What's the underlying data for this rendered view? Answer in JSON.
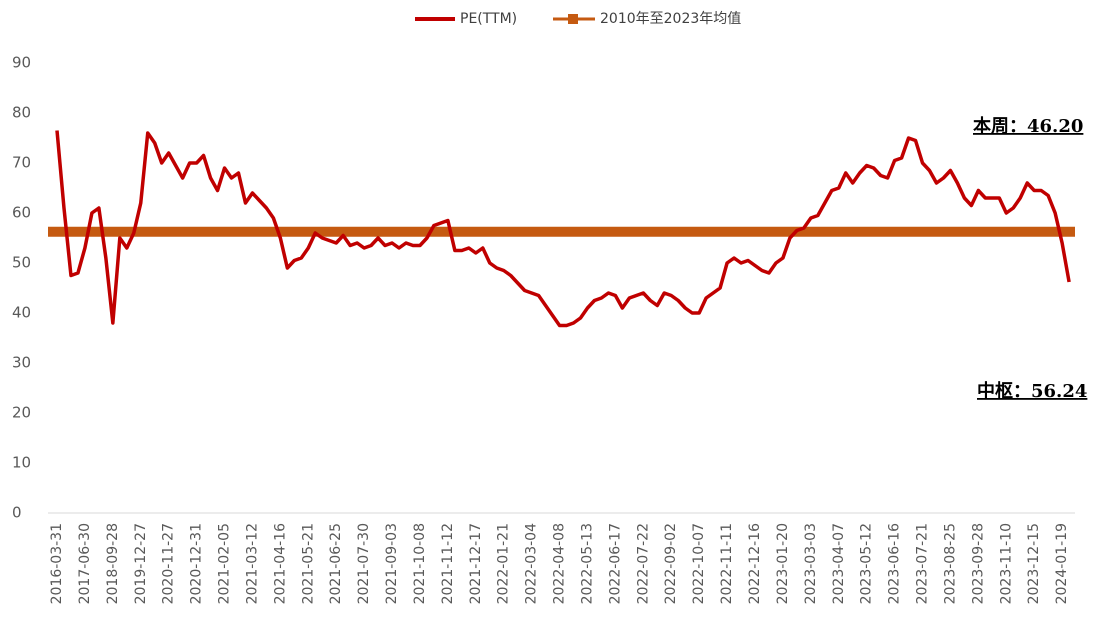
{
  "chart_data": {
    "type": "line",
    "categories": [
      "2016-03-31",
      null,
      null,
      null,
      "2017-06-30",
      null,
      null,
      null,
      "2018-09-28",
      null,
      null,
      null,
      "2019-12-27",
      null,
      null,
      null,
      "2020-11-27",
      null,
      null,
      null,
      "2020-12-31",
      null,
      null,
      null,
      "2021-02-05",
      null,
      null,
      null,
      "2021-03-12",
      null,
      null,
      null,
      "2021-04-16",
      null,
      null,
      null,
      "2021-05-21",
      null,
      null,
      null,
      "2021-06-25",
      null,
      null,
      null,
      "2021-07-30",
      null,
      null,
      null,
      "2021-09-03",
      null,
      null,
      null,
      "2021-10-08",
      null,
      null,
      null,
      "2021-11-12",
      null,
      null,
      null,
      "2021-12-17",
      null,
      null,
      null,
      "2022-01-21",
      null,
      null,
      null,
      "2022-03-04",
      null,
      null,
      null,
      "2022-04-08",
      null,
      null,
      null,
      "2022-05-13",
      null,
      null,
      null,
      "2022-06-17",
      null,
      null,
      null,
      "2022-07-22",
      null,
      null,
      null,
      "2022-09-02",
      null,
      null,
      null,
      "2022-10-07",
      null,
      null,
      null,
      "2022-11-11",
      null,
      null,
      null,
      "2022-12-16",
      null,
      null,
      null,
      "2023-01-20",
      null,
      null,
      null,
      "2023-03-03",
      null,
      null,
      null,
      "2023-04-07",
      null,
      null,
      null,
      "2023-05-12",
      null,
      null,
      null,
      "2023-06-16",
      null,
      null,
      null,
      "2023-07-21",
      null,
      null,
      null,
      "2023-08-25",
      null,
      null,
      null,
      "2023-09-28",
      null,
      null,
      null,
      "2023-11-10",
      null,
      null,
      null,
      "2023-12-15",
      null,
      null,
      null,
      "2024-01-19",
      null
    ],
    "series": [
      {
        "name": "PE(TTM)",
        "color": "#c00000",
        "values": [
          76.5,
          61,
          47.5,
          48,
          53,
          60,
          61,
          51,
          38,
          55,
          53,
          56,
          62,
          76,
          74,
          70,
          72,
          69.5,
          67,
          70,
          70,
          71.5,
          67,
          64.5,
          69,
          67,
          68,
          62,
          64,
          62.5,
          61,
          59,
          55,
          49,
          50.5,
          51,
          53,
          56,
          55,
          54.5,
          54,
          55.5,
          53.5,
          54,
          53,
          53.5,
          55,
          53.5,
          54,
          53,
          54,
          53.5,
          53.5,
          55,
          57.5,
          58,
          58.5,
          52.5,
          52.5,
          53,
          52,
          53,
          50,
          49,
          48.5,
          47.5,
          46,
          44.5,
          44,
          43.5,
          41.5,
          39.5,
          37.5,
          37.5,
          38,
          39,
          41,
          42.5,
          43,
          44,
          43.5,
          41,
          43,
          43.5,
          44,
          42.5,
          41.5,
          44,
          43.5,
          42.5,
          41,
          40,
          40,
          43,
          44,
          45,
          50,
          51,
          50,
          50.5,
          49.5,
          48.5,
          48,
          50,
          51,
          55,
          56.5,
          57,
          59,
          59.5,
          62,
          64.5,
          65,
          68,
          66,
          68,
          69.5,
          69,
          67.5,
          67,
          70.5,
          71,
          75,
          74.5,
          70,
          68.5,
          66,
          67,
          68.5,
          66,
          63,
          61.5,
          64.5,
          63,
          63,
          63,
          60,
          61,
          63,
          66,
          64.5,
          64.5,
          63.5,
          60,
          54,
          46.2
        ]
      }
    ],
    "reference_line": {
      "name": "2010年至2023年均值",
      "color": "#c55a11",
      "value": 56.24
    },
    "annotations": [
      "本周：46.20",
      "中枢：56.24"
    ],
    "ylim": [
      0,
      90
    ],
    "yticks": [
      0,
      10,
      20,
      30,
      40,
      50,
      60,
      70,
      80,
      90
    ],
    "grid": false
  }
}
